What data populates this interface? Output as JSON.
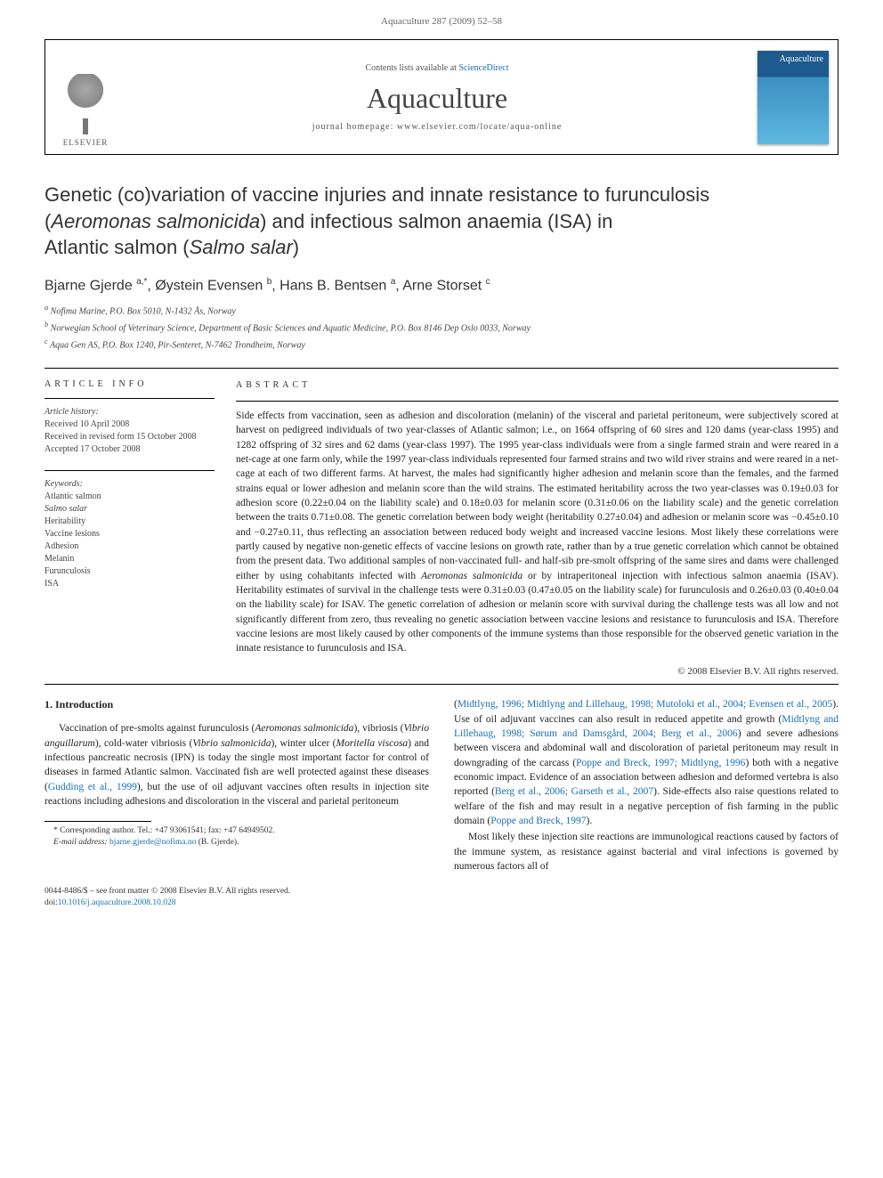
{
  "header": {
    "running": "Aquaculture 287 (2009) 52–58"
  },
  "banner": {
    "contents_prefix": "Contents lists available at ",
    "sd": "ScienceDirect",
    "journal": "Aquaculture",
    "homepage_label": "journal homepage: ",
    "homepage_url": "www.elsevier.com/locate/aqua-online",
    "publisher": "ELSEVIER",
    "cover_title": "Aquaculture"
  },
  "article": {
    "title_line1": "Genetic (co)variation of vaccine injuries and innate resistance to furunculosis",
    "title_line2_pre": "(",
    "title_line2_it1": "Aeromonas salmonicida",
    "title_line2_mid": ") and infectious salmon anaemia (ISA) in",
    "title_line3_pre": "Atlantic salmon (",
    "title_line3_it": "Salmo salar",
    "title_line3_post": ")"
  },
  "authors": {
    "a1": "Bjarne Gjerde ",
    "a1s": "a,",
    "a1star": "*",
    "a2": ", Øystein Evensen ",
    "a2s": "b",
    "a3": ", Hans B. Bentsen ",
    "a3s": "a",
    "a4": ", Arne Storset ",
    "a4s": "c"
  },
  "affiliations": {
    "a": "Nofima Marine, P.O. Box 5010, N-1432 Ås, Norway",
    "b": "Norwegian School of Veterinary Science, Department of Basic Sciences and Aquatic Medicine, P.O. Box 8146 Dep Oslo 0033, Norway",
    "c": "Aqua Gen AS, P.O. Box 1240, Pir-Senteret, N-7462 Trondheim, Norway"
  },
  "info": {
    "heading": "article info",
    "history_label": "Article history:",
    "received": "Received 10 April 2008",
    "revised": "Received in revised form 15 October 2008",
    "accepted": "Accepted 17 October 2008",
    "keywords_label": "Keywords:",
    "kw1": "Atlantic salmon",
    "kw2": "Salmo salar",
    "kw3": "Heritability",
    "kw4": "Vaccine lesions",
    "kw5": "Adhesion",
    "kw6": "Melanin",
    "kw7": "Furunculosis",
    "kw8": "ISA"
  },
  "abstract": {
    "heading": "abstract",
    "text_p1": "Side effects from vaccination, seen as adhesion and discoloration (melanin) of the visceral and parietal peritoneum, were subjectively scored at harvest on pedigreed individuals of two year-classes of Atlantic salmon; i.e., on 1664 offspring of 60 sires and 120 dams (year-class 1995) and 1282 offspring of 32 sires and 62 dams (year-class 1997). The 1995 year-class individuals were from a single farmed strain and were reared in a net-cage at one farm only, while the 1997 year-class individuals represented four farmed strains and two wild river strains and were reared in a net-cage at each of two different farms. At harvest, the males had significantly higher adhesion and melanin score than the females, and the farmed strains equal or lower adhesion and melanin score than the wild strains. The estimated heritability across the two year-classes was 0.19±0.03 for adhesion score (0.22±0.04 on the liability scale) and 0.18±0.03 for melanin score (0.31±0.06 on the liability scale) and the genetic correlation between the traits 0.71±0.08. The genetic correlation between body weight (heritability 0.27±0.04) and adhesion or melanin score was −0.45±0.10 and −0.27±0.11, thus reflecting an association between reduced body weight and increased vaccine lesions. Most likely these correlations were partly caused by negative non-genetic effects of vaccine lesions on growth rate, rather than by a true genetic correlation which cannot be obtained from the present data. Two additional samples of non-vaccinated full- and half-sib pre-smolt offspring of the same sires and dams were challenged either by using cohabitants infected with ",
    "text_it1": "Aeromonas salmonicida",
    "text_p2": " or by intraperitoneal injection with infectious salmon anaemia (ISAV). Heritability estimates of survival in the challenge tests were 0.31±0.03 (0.47±0.05 on the liability scale) for furunculosis and 0.26±0.03 (0.40±0.04 on the liability scale) for ISAV. The genetic correlation of adhesion or melanin score with survival during the challenge tests was all low and not significantly different from zero, thus revealing no genetic association between vaccine lesions and resistance to furunculosis and ISA. Therefore vaccine lesions are most likely caused by other components of the immune systems than those responsible for the observed genetic variation in the innate resistance to furunculosis and ISA.",
    "copyright": "© 2008 Elsevier B.V. All rights reserved."
  },
  "section1": {
    "heading": "1. Introduction"
  },
  "col1": {
    "p1_a": "Vaccination of pre-smolts against furunculosis (",
    "p1_it1": "Aeromonas salmonicida",
    "p1_b": "), vibriosis (",
    "p1_it2": "Vibrio anguillarum",
    "p1_c": "), cold-water vibriosis (",
    "p1_it3": "Vibrio salmonicida",
    "p1_d": "), winter ulcer (",
    "p1_it4": "Moritella viscosa",
    "p1_e": ") and infectious pancreatic necrosis (IPN) is today the single most important factor for control of diseases in farmed Atlantic salmon. Vaccinated fish are well protected against these diseases (",
    "p1_ref1": "Gudding et al., 1999",
    "p1_f": "), but the use of oil adjuvant vaccines often results in injection site reactions including adhesions and discoloration in the visceral and parietal peritoneum"
  },
  "col2": {
    "p1_a": "(",
    "p1_ref1": "Midtlyng, 1996; Midtlyng and Lillehaug, 1998; Mutoloki et al., 2004; Evensen et al., 2005",
    "p1_b": "). Use of oil adjuvant vaccines can also result in reduced appetite and growth (",
    "p1_ref2": "Midtlyng and Lillehaug, 1998; Sørum and Damsgård, 2004; Berg et al., 2006",
    "p1_c": ") and severe adhesions between viscera and abdominal wall and discoloration of parietal peritoneum may result in downgrading of the carcass (",
    "p1_ref3": "Poppe and Breck, 1997; Midtlyng, 1996",
    "p1_d": ") both with a negative economic impact. Evidence of an association between adhesion and deformed vertebra is also reported (",
    "p1_ref4": "Berg et al., 2006; Garseth et al., 2007",
    "p1_e": "). Side-effects also raise questions related to welfare of the fish and may result in a negative perception of fish farming in the public domain (",
    "p1_ref5": "Poppe and Breck, 1997",
    "p1_f": ").",
    "p2": "Most likely these injection site reactions are immunological reactions caused by factors of the immune system, as resistance against bacterial and viral infections is governed by numerous factors all of"
  },
  "footnote": {
    "corr": "* Corresponding author. Tel.: +47 93061541; fax: +47 64949502.",
    "email_label": "E-mail address: ",
    "email": "bjarne.gjerde@nofima.no",
    "email_post": " (B. Gjerde)."
  },
  "bottom": {
    "line1": "0044-8486/$ – see front matter © 2008 Elsevier B.V. All rights reserved.",
    "doi_label": "doi:",
    "doi": "10.1016/j.aquaculture.2008.10.028"
  },
  "colors": {
    "link": "#1a6fb8",
    "text": "#222222",
    "muted": "#666666",
    "cover_top": "#1e5a8e",
    "cover_bottom": "#5fb8e0"
  }
}
